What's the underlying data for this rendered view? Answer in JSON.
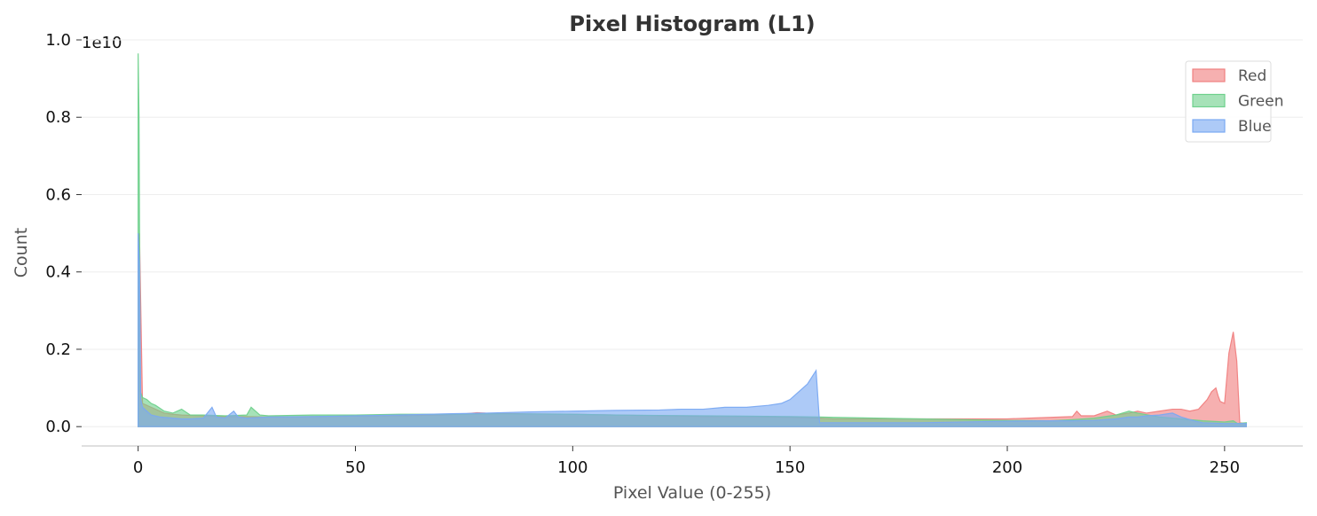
{
  "chart_data": {
    "type": "area",
    "title": "Pixel Histogram (L1)",
    "xlabel": "Pixel Value (0-255)",
    "ylabel": "Count",
    "y_offset_label": "1e10",
    "xlim": [
      -13,
      268
    ],
    "ylim": [
      -0.05,
      1.0
    ],
    "x_ticks": [
      0,
      50,
      100,
      150,
      200,
      250
    ],
    "y_ticks": [
      0.0,
      0.2,
      0.4,
      0.6,
      0.8,
      1.0
    ],
    "y_tick_labels": [
      "0.0",
      "0.2",
      "0.4",
      "0.6",
      "0.8",
      "1.0"
    ],
    "grid": "horizontal",
    "legend_position": "top-right",
    "series": [
      {
        "name": "Red",
        "color": "#f08080",
        "points": [
          [
            0,
            0.48
          ],
          [
            0.3,
            0.5
          ],
          [
            1,
            0.06
          ],
          [
            2,
            0.055
          ],
          [
            3,
            0.05
          ],
          [
            4,
            0.045
          ],
          [
            6,
            0.035
          ],
          [
            8,
            0.032
          ],
          [
            10,
            0.03
          ],
          [
            15,
            0.028
          ],
          [
            20,
            0.026
          ],
          [
            25,
            0.026
          ],
          [
            30,
            0.025
          ],
          [
            40,
            0.026
          ],
          [
            50,
            0.027
          ],
          [
            60,
            0.028
          ],
          [
            70,
            0.03
          ],
          [
            75,
            0.033
          ],
          [
            78,
            0.036
          ],
          [
            80,
            0.035
          ],
          [
            85,
            0.034
          ],
          [
            90,
            0.033
          ],
          [
            100,
            0.032
          ],
          [
            110,
            0.03
          ],
          [
            120,
            0.028
          ],
          [
            130,
            0.026
          ],
          [
            140,
            0.026
          ],
          [
            150,
            0.024
          ],
          [
            157,
            0.022
          ],
          [
            160,
            0.02
          ],
          [
            170,
            0.02
          ],
          [
            180,
            0.02
          ],
          [
            190,
            0.02
          ],
          [
            200,
            0.02
          ],
          [
            205,
            0.022
          ],
          [
            210,
            0.024
          ],
          [
            215,
            0.026
          ],
          [
            216,
            0.04
          ],
          [
            217,
            0.028
          ],
          [
            220,
            0.028
          ],
          [
            223,
            0.04
          ],
          [
            225,
            0.03
          ],
          [
            228,
            0.035
          ],
          [
            230,
            0.04
          ],
          [
            232,
            0.035
          ],
          [
            235,
            0.04
          ],
          [
            238,
            0.045
          ],
          [
            240,
            0.045
          ],
          [
            242,
            0.04
          ],
          [
            244,
            0.045
          ],
          [
            246,
            0.07
          ],
          [
            247,
            0.09
          ],
          [
            248,
            0.1
          ],
          [
            248.5,
            0.08
          ],
          [
            249,
            0.065
          ],
          [
            250,
            0.06
          ],
          [
            251,
            0.19
          ],
          [
            252,
            0.245
          ],
          [
            252.8,
            0.17
          ],
          [
            253.5,
            0.01
          ],
          [
            255,
            0.008
          ]
        ]
      },
      {
        "name": "Green",
        "color": "#6fd18c",
        "points": [
          [
            0,
            0.965
          ],
          [
            0.2,
            0.8
          ],
          [
            0.5,
            0.09
          ],
          [
            1,
            0.075
          ],
          [
            2,
            0.07
          ],
          [
            3,
            0.06
          ],
          [
            4,
            0.055
          ],
          [
            6,
            0.04
          ],
          [
            8,
            0.035
          ],
          [
            10,
            0.045
          ],
          [
            12,
            0.03
          ],
          [
            15,
            0.03
          ],
          [
            20,
            0.028
          ],
          [
            25,
            0.03
          ],
          [
            26,
            0.05
          ],
          [
            28,
            0.03
          ],
          [
            30,
            0.028
          ],
          [
            40,
            0.03
          ],
          [
            50,
            0.03
          ],
          [
            60,
            0.032
          ],
          [
            70,
            0.032
          ],
          [
            80,
            0.033
          ],
          [
            90,
            0.033
          ],
          [
            100,
            0.032
          ],
          [
            110,
            0.03
          ],
          [
            120,
            0.029
          ],
          [
            130,
            0.028
          ],
          [
            140,
            0.027
          ],
          [
            150,
            0.026
          ],
          [
            157,
            0.025
          ],
          [
            160,
            0.024
          ],
          [
            170,
            0.022
          ],
          [
            180,
            0.02
          ],
          [
            190,
            0.018
          ],
          [
            200,
            0.016
          ],
          [
            210,
            0.015
          ],
          [
            215,
            0.018
          ],
          [
            220,
            0.022
          ],
          [
            225,
            0.03
          ],
          [
            228,
            0.04
          ],
          [
            230,
            0.035
          ],
          [
            235,
            0.025
          ],
          [
            240,
            0.02
          ],
          [
            245,
            0.015
          ],
          [
            250,
            0.012
          ],
          [
            252,
            0.015
          ],
          [
            253,
            0.008
          ],
          [
            255,
            0.01
          ]
        ]
      },
      {
        "name": "Blue",
        "color": "#7aa9f2",
        "points": [
          [
            0,
            0.5
          ],
          [
            0.3,
            0.42
          ],
          [
            0.6,
            0.07
          ],
          [
            1,
            0.05
          ],
          [
            2,
            0.04
          ],
          [
            3,
            0.03
          ],
          [
            5,
            0.025
          ],
          [
            8,
            0.022
          ],
          [
            10,
            0.02
          ],
          [
            12,
            0.02
          ],
          [
            15,
            0.022
          ],
          [
            17,
            0.05
          ],
          [
            18,
            0.025
          ],
          [
            20,
            0.022
          ],
          [
            22,
            0.04
          ],
          [
            23,
            0.025
          ],
          [
            25,
            0.022
          ],
          [
            30,
            0.025
          ],
          [
            40,
            0.026
          ],
          [
            50,
            0.028
          ],
          [
            60,
            0.03
          ],
          [
            70,
            0.033
          ],
          [
            80,
            0.035
          ],
          [
            90,
            0.038
          ],
          [
            100,
            0.04
          ],
          [
            110,
            0.042
          ],
          [
            120,
            0.043
          ],
          [
            125,
            0.045
          ],
          [
            130,
            0.045
          ],
          [
            135,
            0.05
          ],
          [
            140,
            0.05
          ],
          [
            145,
            0.055
          ],
          [
            148,
            0.06
          ],
          [
            150,
            0.07
          ],
          [
            152,
            0.09
          ],
          [
            154,
            0.11
          ],
          [
            156,
            0.145
          ],
          [
            156.8,
            0.01
          ],
          [
            160,
            0.01
          ],
          [
            170,
            0.01
          ],
          [
            180,
            0.01
          ],
          [
            190,
            0.012
          ],
          [
            200,
            0.014
          ],
          [
            210,
            0.015
          ],
          [
            215,
            0.015
          ],
          [
            220,
            0.016
          ],
          [
            225,
            0.02
          ],
          [
            228,
            0.025
          ],
          [
            230,
            0.025
          ],
          [
            232,
            0.028
          ],
          [
            235,
            0.03
          ],
          [
            238,
            0.035
          ],
          [
            240,
            0.025
          ],
          [
            243,
            0.015
          ],
          [
            245,
            0.01
          ],
          [
            250,
            0.008
          ],
          [
            255,
            0.008
          ]
        ]
      }
    ]
  }
}
